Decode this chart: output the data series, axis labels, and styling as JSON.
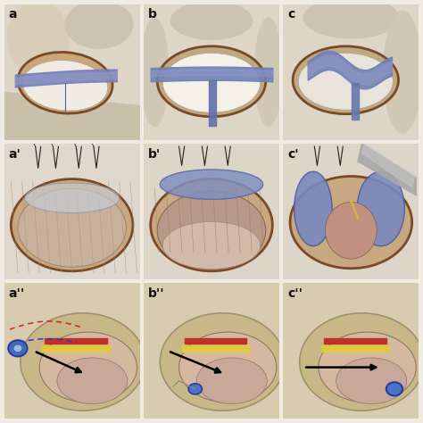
{
  "title": "",
  "nrows": 3,
  "ncols": 3,
  "labels": [
    "a",
    "b",
    "c",
    "a'",
    "b'",
    "c'",
    "a''",
    "b''",
    "c''"
  ],
  "bg_color": "#f0ece4",
  "figsize": [
    4.74,
    4.74
  ],
  "dpi": 100,
  "label_fontsize": 10,
  "label_color": "#111111",
  "wspace": 0.03,
  "hspace": 0.03,
  "panel_bg": [
    "#e8e0d0",
    "#e8e0d0",
    "#e8e0d0",
    "#ddd5c8",
    "#ddd5c8",
    "#ddd5c8",
    "#d8cdb8",
    "#d8cdb8",
    "#d8cdb8"
  ]
}
